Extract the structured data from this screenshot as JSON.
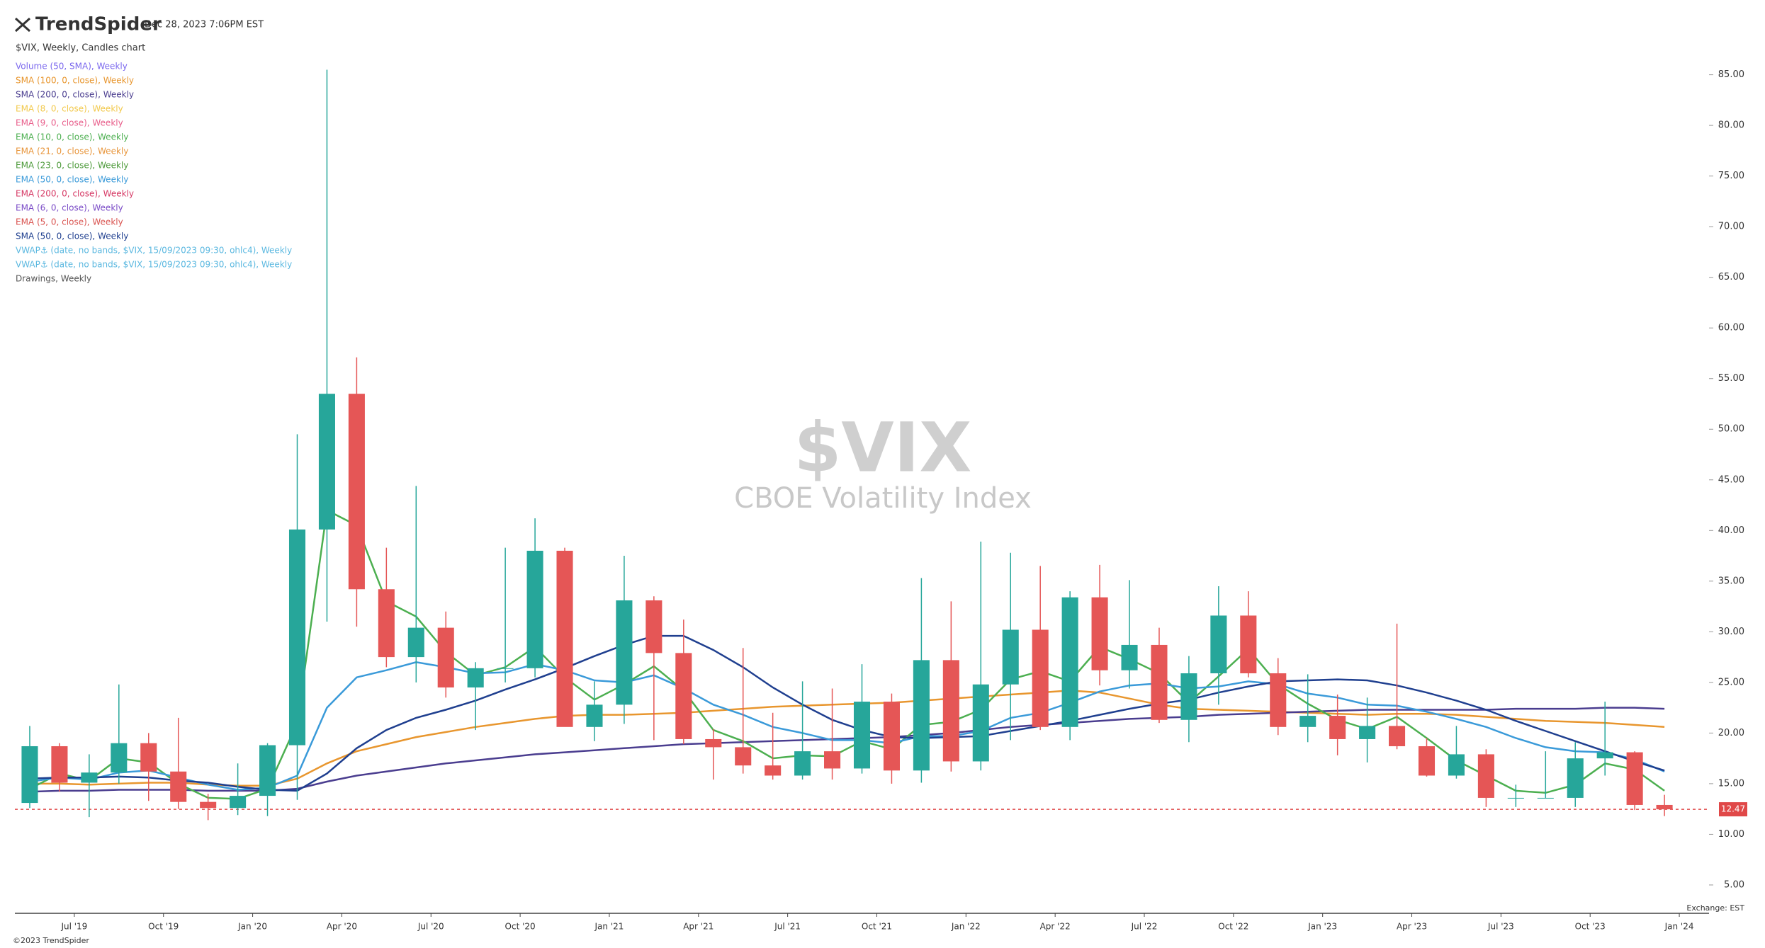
{
  "chart_data": {
    "type": "candlestick",
    "brand": "TrendSpider",
    "timestamp": "Dec 28, 2023 7:06PM EST",
    "chart_label": "$VIX, Weekly, Candles chart",
    "title": "$VIX",
    "subtitle": "CBOE Volatility Index",
    "footer": "©2023 TrendSpider",
    "exchange_note": "Exchange: EST",
    "last_price": 12.47,
    "last_price_color": "#e04848",
    "up_color": "#26a69a",
    "down_color": "#e55656",
    "xlim": [
      "2019-05",
      "2024-02"
    ],
    "xticks": [
      {
        "value": "2019-07",
        "label": "Jul '19"
      },
      {
        "value": "2019-10",
        "label": "Oct '19"
      },
      {
        "value": "2020-01",
        "label": "Jan '20"
      },
      {
        "value": "2020-04",
        "label": "Apr '20"
      },
      {
        "value": "2020-07",
        "label": "Jul '20"
      },
      {
        "value": "2020-10",
        "label": "Oct '20"
      },
      {
        "value": "2021-01",
        "label": "Jan '21"
      },
      {
        "value": "2021-04",
        "label": "Apr '21"
      },
      {
        "value": "2021-07",
        "label": "Jul '21"
      },
      {
        "value": "2021-10",
        "label": "Oct '21"
      },
      {
        "value": "2022-01",
        "label": "Jan '22"
      },
      {
        "value": "2022-04",
        "label": "Apr '22"
      },
      {
        "value": "2022-07",
        "label": "Jul '22"
      },
      {
        "value": "2022-10",
        "label": "Oct '22"
      },
      {
        "value": "2023-01",
        "label": "Jan '23"
      },
      {
        "value": "2023-04",
        "label": "Apr '23"
      },
      {
        "value": "2023-07",
        "label": "Jul '23"
      },
      {
        "value": "2023-10",
        "label": "Oct '23"
      },
      {
        "value": "2024-01",
        "label": "Jan '24"
      }
    ],
    "ylim": [
      2.2,
      86.3
    ],
    "yticks": [
      {
        "value": 5,
        "label": "5.00"
      },
      {
        "value": 10,
        "label": "10.00"
      },
      {
        "value": 15,
        "label": "15.00"
      },
      {
        "value": 20,
        "label": "20.00"
      },
      {
        "value": 25,
        "label": "25.00"
      },
      {
        "value": 30,
        "label": "30.00"
      },
      {
        "value": 35,
        "label": "35.00"
      },
      {
        "value": 40,
        "label": "40.00"
      },
      {
        "value": 45,
        "label": "45.00"
      },
      {
        "value": 50,
        "label": "50.00"
      },
      {
        "value": 55,
        "label": "55.00"
      },
      {
        "value": 60,
        "label": "60.00"
      },
      {
        "value": 65,
        "label": "65.00"
      },
      {
        "value": 70,
        "label": "70.00"
      },
      {
        "value": 75,
        "label": "75.00"
      },
      {
        "value": 80,
        "label": "80.00"
      },
      {
        "value": 85,
        "label": "85.00"
      }
    ],
    "candles": {
      "x": [
        "2019-05",
        "2019-06",
        "2019-07",
        "2019-08",
        "2019-09",
        "2019-10",
        "2019-11",
        "2019-12",
        "2020-01",
        "2020-02",
        "2020-03",
        "2020-04",
        "2020-05",
        "2020-06",
        "2020-07",
        "2020-08",
        "2020-09",
        "2020-10",
        "2020-11",
        "2020-12",
        "2021-01",
        "2021-02",
        "2021-03",
        "2021-04",
        "2021-05",
        "2021-06",
        "2021-07",
        "2021-08",
        "2021-09",
        "2021-10",
        "2021-11",
        "2021-12",
        "2022-01",
        "2022-02",
        "2022-03",
        "2022-04",
        "2022-05",
        "2022-06",
        "2022-07",
        "2022-08",
        "2022-09",
        "2022-10",
        "2022-11",
        "2022-12",
        "2023-01",
        "2023-02",
        "2023-03",
        "2023-04",
        "2023-05",
        "2023-06",
        "2023-07",
        "2023-08",
        "2023-09",
        "2023-10",
        "2023-11",
        "2023-12"
      ],
      "open": [
        13.1,
        18.7,
        15.1,
        16.1,
        19.0,
        16.2,
        13.2,
        12.6,
        13.8,
        18.8,
        40.1,
        53.5,
        34.2,
        27.5,
        30.4,
        24.5,
        26.4,
        26.4,
        38.0,
        20.6,
        22.8,
        33.1,
        27.9,
        19.4,
        18.6,
        16.8,
        15.8,
        18.2,
        16.5,
        23.1,
        16.3,
        27.2,
        17.2,
        24.8,
        30.2,
        20.6,
        33.4,
        26.2,
        28.7,
        21.3,
        25.9,
        31.6,
        25.9,
        20.6,
        21.7,
        19.4,
        20.7,
        18.7,
        15.8,
        17.9,
        13.6,
        13.6,
        13.6,
        17.5,
        18.1,
        12.9
      ],
      "high": [
        20.7,
        19.0,
        17.9,
        24.8,
        20.0,
        21.5,
        14.0,
        17.0,
        19.0,
        49.5,
        85.5,
        57.1,
        38.3,
        44.4,
        32.0,
        27.0,
        38.3,
        41.2,
        38.3,
        25.1,
        37.5,
        33.5,
        31.2,
        20.4,
        28.4,
        22.0,
        25.1,
        24.4,
        26.8,
        23.9,
        35.3,
        33.0,
        38.9,
        37.8,
        36.5,
        34.0,
        36.6,
        35.1,
        30.4,
        27.6,
        34.5,
        34.0,
        27.4,
        25.8,
        23.8,
        23.5,
        30.8,
        19.5,
        20.7,
        18.4,
        14.9,
        18.2,
        19.1,
        23.1,
        18.2,
        13.9
      ],
      "low": [
        12.6,
        14.2,
        11.7,
        15.0,
        13.3,
        12.5,
        11.4,
        11.9,
        11.8,
        13.4,
        31.0,
        30.5,
        26.5,
        25.0,
        23.5,
        20.3,
        25.0,
        25.5,
        20.7,
        19.2,
        20.9,
        19.3,
        18.9,
        15.4,
        16.0,
        15.4,
        15.4,
        15.4,
        16.0,
        15.0,
        15.1,
        16.2,
        16.3,
        19.3,
        20.3,
        19.3,
        24.7,
        24.4,
        21.0,
        19.1,
        22.8,
        25.5,
        19.8,
        19.1,
        17.8,
        17.1,
        18.4,
        15.7,
        15.5,
        12.7,
        12.7,
        13.6,
        12.7,
        15.8,
        12.4,
        11.8
      ],
      "close": [
        18.7,
        15.1,
        16.1,
        19.0,
        16.2,
        13.2,
        12.6,
        13.8,
        18.8,
        40.1,
        53.5,
        34.2,
        27.5,
        30.4,
        24.5,
        26.4,
        26.4,
        38.0,
        20.6,
        22.8,
        33.1,
        27.9,
        19.4,
        18.6,
        16.8,
        15.8,
        18.2,
        16.5,
        23.1,
        16.3,
        27.2,
        17.2,
        24.8,
        30.2,
        20.6,
        33.4,
        26.2,
        28.7,
        21.3,
        25.9,
        31.6,
        25.9,
        20.6,
        21.7,
        19.4,
        20.7,
        18.7,
        15.8,
        17.9,
        13.6,
        13.6,
        13.6,
        17.5,
        18.1,
        12.9,
        12.47
      ]
    },
    "series": [
      {
        "name": "Volume (50, SMA), Weekly",
        "color": "#7b68ee"
      },
      {
        "name": "SMA (100, 0, close), Weekly",
        "color": "#e8962e",
        "values": [
          15.0,
          15.0,
          14.9,
          15.0,
          15.1,
          15.1,
          14.9,
          14.8,
          14.8,
          15.5,
          17.0,
          18.2,
          18.9,
          19.6,
          20.1,
          20.6,
          21.0,
          21.4,
          21.7,
          21.8,
          21.8,
          21.9,
          22.0,
          22.2,
          22.4,
          22.6,
          22.7,
          22.8,
          22.9,
          23.0,
          23.2,
          23.4,
          23.6,
          23.8,
          24.0,
          24.2,
          24.0,
          23.4,
          22.8,
          22.4,
          22.3,
          22.2,
          22.1,
          22.0,
          21.9,
          21.8,
          21.9,
          21.9,
          21.8,
          21.6,
          21.4,
          21.2,
          21.1,
          21.0,
          20.8,
          20.6
        ]
      },
      {
        "name": "SMA (200, 0, close), Weekly",
        "color": "#4a3d8f",
        "values": [
          14.2,
          14.3,
          14.3,
          14.4,
          14.4,
          14.4,
          14.3,
          14.3,
          14.3,
          14.5,
          15.2,
          15.8,
          16.2,
          16.6,
          17.0,
          17.3,
          17.6,
          17.9,
          18.1,
          18.3,
          18.5,
          18.7,
          18.9,
          19.0,
          19.1,
          19.2,
          19.3,
          19.4,
          19.5,
          19.6,
          19.8,
          20.0,
          20.3,
          20.6,
          20.8,
          21.0,
          21.2,
          21.4,
          21.5,
          21.6,
          21.8,
          21.9,
          22.0,
          22.1,
          22.2,
          22.3,
          22.3,
          22.3,
          22.3,
          22.3,
          22.4,
          22.4,
          22.4,
          22.5,
          22.5,
          22.4
        ]
      },
      {
        "name": "EMA (8, 0, close), Weekly",
        "color": "#f2c94c"
      },
      {
        "name": "EMA (9, 0, close), Weekly",
        "color": "#e85d8a"
      },
      {
        "name": "EMA (10, 0, close), Weekly",
        "color": "#4caf50",
        "values": [
          14.5,
          16.0,
          15.3,
          17.5,
          17.1,
          15.0,
          13.6,
          13.5,
          14.5,
          21.0,
          42.0,
          40.5,
          33.0,
          31.5,
          28.0,
          25.7,
          26.5,
          28.5,
          25.5,
          23.3,
          24.8,
          26.6,
          24.2,
          20.3,
          19.2,
          17.5,
          17.8,
          17.7,
          19.2,
          18.4,
          20.8,
          21.1,
          22.3,
          25.3,
          26.1,
          25.1,
          28.5,
          27.3,
          25.9,
          23.0,
          25.6,
          28.3,
          24.8,
          22.9,
          21.3,
          20.4,
          21.6,
          19.5,
          17.3,
          15.8,
          14.3,
          14.1,
          14.9,
          17.0,
          16.4,
          14.3
        ]
      },
      {
        "name": "EMA (21, 0, close), Weekly",
        "color": "#e8963c"
      },
      {
        "name": "EMA (23, 0, close), Weekly",
        "color": "#4d9a3a"
      },
      {
        "name": "EMA (50, 0, close), Weekly",
        "color": "#3a9ad9",
        "values": [
          15.2,
          15.6,
          15.4,
          16.1,
          16.3,
          15.6,
          14.9,
          14.4,
          14.6,
          15.8,
          22.5,
          25.5,
          26.2,
          27.0,
          26.5,
          25.9,
          26.0,
          26.8,
          26.2,
          25.2,
          25.0,
          25.7,
          24.4,
          22.8,
          21.8,
          20.6,
          20.0,
          19.3,
          19.3,
          19.0,
          19.7,
          19.7,
          20.2,
          21.5,
          22.0,
          23.0,
          24.1,
          24.7,
          24.9,
          24.4,
          24.6,
          25.1,
          24.8,
          23.9,
          23.5,
          22.8,
          22.7,
          22.1,
          21.4,
          20.6,
          19.5,
          18.6,
          18.2,
          18.1,
          17.4,
          16.2
        ]
      },
      {
        "name": "EMA (200, 0, close), Weekly",
        "color": "#d63864"
      },
      {
        "name": "EMA (6, 0, close), Weekly",
        "color": "#7b4cc7"
      },
      {
        "name": "EMA (5, 0, close), Weekly",
        "color": "#d9534f"
      },
      {
        "name": "SMA (50, 0, close), Weekly",
        "color": "#1f3f8f",
        "values": [
          15.5,
          15.6,
          15.6,
          15.7,
          15.6,
          15.3,
          15.1,
          14.7,
          14.4,
          14.3,
          16.0,
          18.5,
          20.3,
          21.5,
          22.3,
          23.2,
          24.3,
          25.3,
          26.4,
          27.6,
          28.7,
          29.6,
          29.6,
          28.2,
          26.5,
          24.5,
          22.8,
          21.3,
          20.3,
          19.6,
          19.5,
          19.6,
          19.7,
          20.2,
          20.7,
          21.2,
          21.8,
          22.4,
          22.9,
          23.3,
          24.0,
          24.6,
          25.1,
          25.2,
          25.3,
          25.2,
          24.7,
          24.0,
          23.2,
          22.3,
          21.2,
          20.2,
          19.2,
          18.2,
          17.2,
          16.3
        ]
      },
      {
        "name": "VWAP⚓ (date, no bands, $VIX, 15/09/2023 09:30, ohlc4), Weekly",
        "color": "#5bb8e0"
      },
      {
        "name": "VWAP⚓ (date, no bands, $VIX, 15/09/2023 09:30, ohlc4), Weekly",
        "color": "#5bb8e0"
      },
      {
        "name": "Drawings, Weekly",
        "color": "#555555"
      }
    ]
  }
}
